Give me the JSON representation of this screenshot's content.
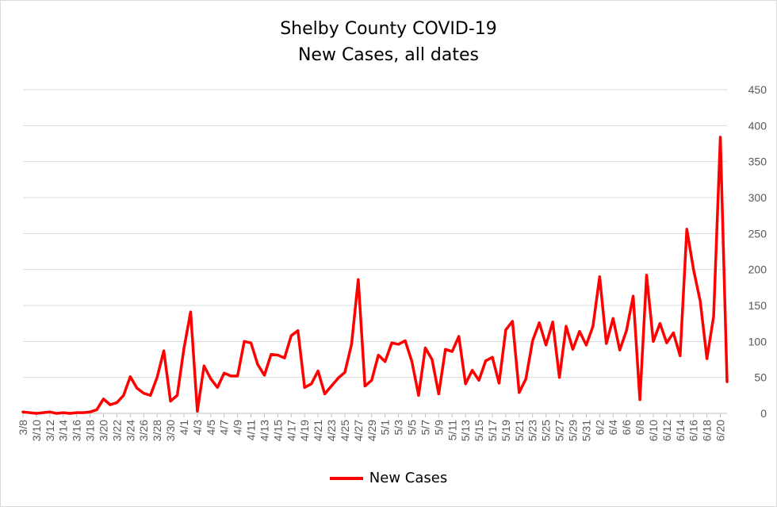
{
  "chart_data": {
    "type": "line",
    "title": "Shelby County COVID-19",
    "subtitle": "New Cases, all dates",
    "xlabel": "",
    "ylabel": "",
    "ylim": [
      0,
      450
    ],
    "yticks": [
      "0",
      "50",
      "100",
      "150",
      "200",
      "250",
      "300",
      "350",
      "400",
      "450"
    ],
    "grid": true,
    "legend": "bottom",
    "x_tick_labels": [
      "3/8",
      "3/10",
      "3/12",
      "3/14",
      "3/16",
      "3/18",
      "3/20",
      "3/22",
      "3/24",
      "3/26",
      "3/28",
      "3/30",
      "4/1",
      "4/3",
      "4/5",
      "4/7",
      "4/9",
      "4/11",
      "4/13",
      "4/15",
      "4/17",
      "4/19",
      "4/21",
      "4/23",
      "4/25",
      "4/27",
      "4/29",
      "5/1",
      "5/3",
      "5/5",
      "5/7",
      "5/9",
      "5/11",
      "5/13",
      "5/15",
      "5/17",
      "5/19",
      "5/21",
      "5/23",
      "5/25",
      "5/27",
      "5/29",
      "5/31",
      "6/2",
      "6/4",
      "6/6",
      "6/8",
      "6/10",
      "6/12",
      "6/14",
      "6/16",
      "6/18",
      "6/20"
    ],
    "series": [
      {
        "name": "New Cases",
        "color": "#ff0000",
        "values": [
          2,
          1,
          0,
          1,
          2,
          0,
          1,
          0,
          1,
          1,
          2,
          5,
          20,
          12,
          15,
          25,
          51,
          35,
          28,
          25,
          50,
          87,
          17,
          25,
          90,
          141,
          3,
          66,
          48,
          36,
          56,
          52,
          52,
          100,
          98,
          68,
          53,
          82,
          81,
          77,
          108,
          115,
          36,
          41,
          59,
          27,
          38,
          49,
          57,
          96,
          186,
          38,
          46,
          81,
          72,
          98,
          96,
          101,
          72,
          25,
          91,
          75,
          27,
          89,
          86,
          107,
          41,
          60,
          46,
          73,
          78,
          42,
          116,
          128,
          29,
          48,
          101,
          126,
          95,
          127,
          50,
          121,
          89,
          114,
          95,
          121,
          190,
          97,
          132,
          88,
          115,
          163,
          19,
          192,
          100,
          125,
          98,
          112,
          80,
          256,
          200,
          156,
          76,
          135,
          384,
          44
        ]
      }
    ]
  }
}
